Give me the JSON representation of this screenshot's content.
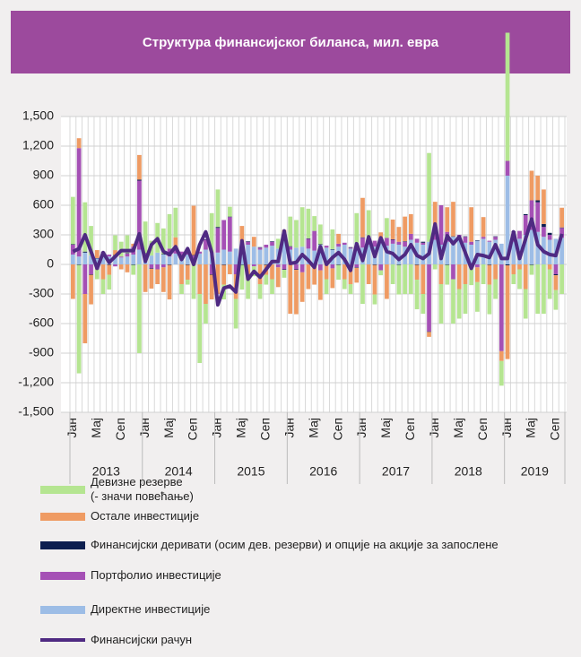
{
  "chart_data": {
    "type": "bar",
    "title": "Структура финансијског биланса, мил. евра",
    "categories": [
      "Јан",
      null,
      null,
      null,
      "Мај",
      null,
      null,
      null,
      "Сеп",
      null,
      null,
      null,
      "Јан",
      null,
      null,
      null,
      "Мај",
      null,
      null,
      null,
      "Сеп",
      null,
      null,
      null,
      "Јан",
      null,
      null,
      null,
      "Мај",
      null,
      null,
      null,
      "Сеп",
      null,
      null,
      null,
      "Јан",
      null,
      null,
      null,
      "Мај",
      null,
      null,
      null,
      "Сеп",
      null,
      null,
      null,
      "Јан",
      null,
      null,
      null,
      "Мај",
      null,
      null,
      null,
      "Сеп",
      null,
      null,
      null,
      "Јан",
      null,
      null,
      null,
      "Мај",
      null,
      null,
      null,
      "Сеп",
      null,
      null,
      null,
      "Јан",
      null,
      null,
      null,
      "Мај",
      null,
      null,
      null,
      "Сеп",
      null
    ],
    "years": [
      "2013",
      "2014",
      "2015",
      "2016",
      "2017",
      "2018",
      "2019"
    ],
    "ylim": [
      -1500,
      1500
    ],
    "yticks": [
      {
        "value": 1500,
        "label": "1,500"
      },
      {
        "value": 1200,
        "label": "1,200"
      },
      900,
      600,
      300,
      0,
      -300,
      -600,
      -900,
      {
        "value": -1200,
        "label": "-1,200"
      },
      {
        "value": -1500,
        "label": "-1,500"
      }
    ],
    "grid": true,
    "series": [
      {
        "name": "Директне инвестиције",
        "type": "bar",
        "color": "#9dbde6",
        "values": [
          100,
          80,
          120,
          90,
          60,
          100,
          80,
          90,
          70,
          80,
          100,
          150,
          60,
          90,
          120,
          100,
          80,
          110,
          90,
          100,
          60,
          110,
          150,
          120,
          120,
          150,
          130,
          160,
          140,
          200,
          180,
          150,
          170,
          190,
          160,
          250,
          150,
          170,
          180,
          160,
          140,
          200,
          170,
          150,
          180,
          200,
          160,
          220,
          170,
          200,
          180,
          220,
          190,
          210,
          200,
          180,
          250,
          220,
          200,
          230,
          250,
          200,
          230,
          280,
          260,
          220,
          200,
          240,
          260,
          230,
          250,
          210,
          900,
          230,
          260,
          300,
          350,
          330,
          280,
          250,
          260,
          270
        ]
      },
      {
        "name": "Портфолио инвестиције",
        "type": "bar",
        "color": "#a550b5",
        "values": [
          100,
          1100,
          -300,
          -100,
          -50,
          30,
          20,
          -20,
          10,
          30,
          80,
          700,
          50,
          -40,
          -50,
          -30,
          80,
          60,
          40,
          20,
          30,
          20,
          100,
          -100,
          250,
          300,
          350,
          -100,
          50,
          30,
          -20,
          20,
          30,
          40,
          -30,
          -50,
          30,
          -50,
          -80,
          100,
          200,
          -60,
          20,
          -40,
          30,
          20,
          10,
          -30,
          100,
          50,
          60,
          -60,
          80,
          40,
          30,
          50,
          60,
          40,
          20,
          -680,
          80,
          400,
          100,
          -150,
          40,
          60,
          30,
          -30,
          20,
          10,
          30,
          -880,
          150,
          100,
          80,
          200,
          300,
          300,
          100,
          50,
          -100,
          100
        ]
      },
      {
        "name": "Финансијски деривати (осим дев. резерви) и опције на акције за запослене",
        "type": "bar",
        "color": "#0d1f4f",
        "values": [
          5,
          -5,
          10,
          -5,
          5,
          0,
          -5,
          5,
          0,
          5,
          -5,
          10,
          5,
          -5,
          0,
          5,
          -5,
          5,
          0,
          -5,
          5,
          0,
          5,
          -5,
          10,
          -5,
          5,
          0,
          -5,
          5,
          0,
          5,
          -5,
          5,
          0,
          -5,
          5,
          -5,
          0,
          5,
          -5,
          5,
          0,
          5,
          -5,
          0,
          5,
          -5,
          5,
          0,
          -5,
          5,
          0,
          5,
          -5,
          5,
          0,
          -5,
          10,
          -5,
          5,
          0,
          -5,
          5,
          0,
          5,
          -10,
          5,
          0,
          -5,
          5,
          0,
          -10,
          5,
          0,
          10,
          -5,
          20,
          30,
          20,
          -10,
          5
        ]
      },
      {
        "name": "Остале инвестиције",
        "type": "bar",
        "color": "#ef9b63",
        "values": [
          -350,
          100,
          -500,
          -300,
          80,
          -150,
          -100,
          50,
          -50,
          -80,
          30,
          250,
          -280,
          -200,
          -150,
          -250,
          -350,
          100,
          -200,
          -150,
          500,
          -300,
          -400,
          -250,
          -300,
          -200,
          -100,
          -250,
          200,
          -150,
          100,
          -200,
          -100,
          -150,
          -200,
          100,
          -500,
          -450,
          -300,
          -250,
          -200,
          -300,
          -150,
          -200,
          100,
          -150,
          -200,
          -150,
          400,
          -200,
          -300,
          100,
          -350,
          200,
          150,
          250,
          200,
          -150,
          -300,
          -50,
          300,
          -200,
          250,
          350,
          -250,
          -200,
          350,
          -150,
          200,
          -200,
          -150,
          -100,
          -950,
          -100,
          -50,
          -250,
          300,
          250,
          350,
          -50,
          -150,
          200
        ]
      },
      {
        "name": "Девизне резерве\n(- значи повећање)",
        "type": "bar",
        "color": "#b5e591",
        "values": [
          480,
          -1100,
          500,
          300,
          -100,
          -150,
          -150,
          150,
          150,
          180,
          -100,
          -900,
          320,
          150,
          300,
          260,
          350,
          300,
          -100,
          -50,
          -350,
          -700,
          -200,
          400,
          380,
          -150,
          100,
          -300,
          -250,
          -200,
          -100,
          -150,
          -100,
          -150,
          100,
          -80,
          300,
          280,
          400,
          300,
          150,
          200,
          -150,
          200,
          -150,
          -100,
          -100,
          300,
          -400,
          300,
          -100,
          -50,
          200,
          -200,
          -300,
          -300,
          -300,
          -300,
          -200,
          900,
          -50,
          -400,
          -200,
          -450,
          -300,
          -300,
          -200,
          -300,
          -200,
          -300,
          -200,
          -250,
          1300,
          -100,
          -200,
          -300,
          -100,
          -500,
          -500,
          -300,
          -200,
          -300
        ]
      },
      {
        "name": "Финансијски рачун",
        "type": "line",
        "color": "#4f2a82",
        "values": [
          130,
          160,
          300,
          130,
          -40,
          120,
          20,
          80,
          140,
          140,
          140,
          310,
          30,
          200,
          260,
          130,
          100,
          180,
          50,
          160,
          0,
          200,
          330,
          120,
          -410,
          -240,
          -220,
          -280,
          240,
          -150,
          -70,
          -130,
          -50,
          30,
          30,
          340,
          10,
          20,
          100,
          40,
          -30,
          180,
          0,
          70,
          120,
          50,
          -60,
          210,
          40,
          280,
          80,
          270,
          130,
          110,
          50,
          100,
          200,
          90,
          60,
          110,
          410,
          60,
          290,
          210,
          280,
          120,
          -40,
          100,
          90,
          70,
          200,
          60,
          60,
          330,
          60,
          260,
          460,
          200,
          130,
          100,
          90,
          310
        ]
      }
    ]
  }
}
